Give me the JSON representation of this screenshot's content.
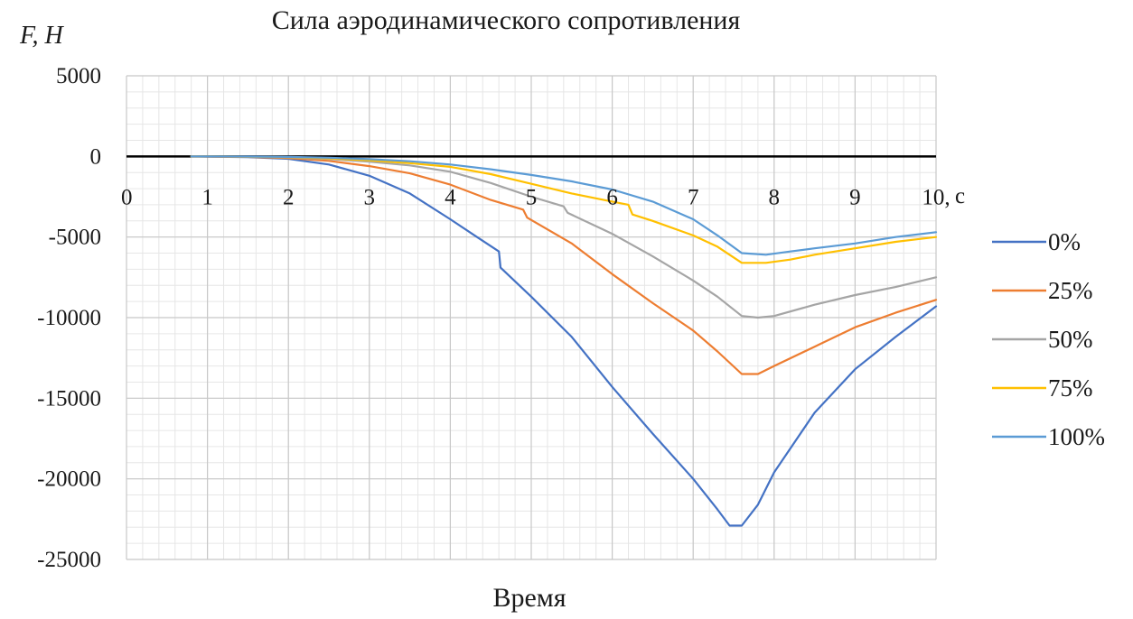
{
  "chart_data": {
    "type": "line",
    "title": "Сила аэродинамического сопротивления",
    "ylabel": "F, H",
    "xlabel": "Время",
    "x_unit": "с",
    "xlim": [
      0,
      10
    ],
    "ylim": [
      -25000,
      5000
    ],
    "x_ticks": [
      0,
      1,
      2,
      3,
      4,
      5,
      6,
      7,
      8,
      9,
      10
    ],
    "x_tick_labels": [
      "0",
      "1",
      "2",
      "3",
      "4",
      "5",
      "6",
      "7",
      "8",
      "9",
      "10,"
    ],
    "y_ticks": [
      5000,
      0,
      -5000,
      -10000,
      -15000,
      -20000,
      -25000
    ],
    "y_tick_labels": [
      "5000",
      "0",
      "-5000",
      "-10000",
      "-15000",
      "-20000",
      "-25000"
    ],
    "grid": true,
    "legend_position": "right",
    "series": [
      {
        "name": "0%",
        "color": "#4472c4",
        "points": [
          [
            0.8,
            0
          ],
          [
            1.5,
            -50
          ],
          [
            2,
            -150
          ],
          [
            2.5,
            -500
          ],
          [
            3,
            -1200
          ],
          [
            3.5,
            -2300
          ],
          [
            4,
            -3900
          ],
          [
            4.3,
            -4900
          ],
          [
            4.6,
            -5900
          ],
          [
            4.62,
            -6900
          ],
          [
            5,
            -8700
          ],
          [
            5.5,
            -11200
          ],
          [
            6,
            -14300
          ],
          [
            6.5,
            -17200
          ],
          [
            7,
            -20000
          ],
          [
            7.3,
            -21900
          ],
          [
            7.45,
            -22900
          ],
          [
            7.6,
            -22900
          ],
          [
            7.8,
            -21600
          ],
          [
            8,
            -19600
          ],
          [
            8.5,
            -15900
          ],
          [
            9,
            -13200
          ],
          [
            9.5,
            -11200
          ],
          [
            10,
            -9300
          ]
        ]
      },
      {
        "name": "25%",
        "color": "#ed7d31",
        "points": [
          [
            0.8,
            0
          ],
          [
            1.5,
            -30
          ],
          [
            2,
            -100
          ],
          [
            2.5,
            -280
          ],
          [
            3,
            -600
          ],
          [
            3.5,
            -1050
          ],
          [
            4,
            -1750
          ],
          [
            4.5,
            -2700
          ],
          [
            4.9,
            -3300
          ],
          [
            4.95,
            -3800
          ],
          [
            5.5,
            -5400
          ],
          [
            6,
            -7300
          ],
          [
            6.5,
            -9100
          ],
          [
            7,
            -10800
          ],
          [
            7.3,
            -12100
          ],
          [
            7.6,
            -13500
          ],
          [
            7.8,
            -13500
          ],
          [
            8,
            -13000
          ],
          [
            8.5,
            -11800
          ],
          [
            9,
            -10600
          ],
          [
            9.5,
            -9700
          ],
          [
            10,
            -8900
          ]
        ]
      },
      {
        "name": "50%",
        "color": "#a5a5a5",
        "points": [
          [
            0.8,
            0
          ],
          [
            1.5,
            -20
          ],
          [
            2,
            -60
          ],
          [
            2.5,
            -160
          ],
          [
            3,
            -330
          ],
          [
            3.5,
            -560
          ],
          [
            4,
            -950
          ],
          [
            4.5,
            -1650
          ],
          [
            5,
            -2500
          ],
          [
            5.4,
            -3100
          ],
          [
            5.45,
            -3500
          ],
          [
            6,
            -4800
          ],
          [
            6.5,
            -6200
          ],
          [
            7,
            -7700
          ],
          [
            7.3,
            -8700
          ],
          [
            7.6,
            -9900
          ],
          [
            7.8,
            -10000
          ],
          [
            8,
            -9900
          ],
          [
            8.5,
            -9200
          ],
          [
            9,
            -8600
          ],
          [
            9.5,
            -8100
          ],
          [
            10,
            -7500
          ]
        ]
      },
      {
        "name": "75%",
        "color": "#ffc000",
        "points": [
          [
            0.8,
            0
          ],
          [
            1.5,
            -15
          ],
          [
            2,
            -45
          ],
          [
            2.5,
            -120
          ],
          [
            3,
            -250
          ],
          [
            3.5,
            -420
          ],
          [
            4,
            -650
          ],
          [
            4.5,
            -1100
          ],
          [
            5,
            -1700
          ],
          [
            5.5,
            -2300
          ],
          [
            6,
            -2800
          ],
          [
            6.2,
            -3000
          ],
          [
            6.25,
            -3600
          ],
          [
            6.5,
            -4000
          ],
          [
            7,
            -4900
          ],
          [
            7.3,
            -5600
          ],
          [
            7.6,
            -6600
          ],
          [
            7.9,
            -6600
          ],
          [
            8.2,
            -6400
          ],
          [
            8.5,
            -6100
          ],
          [
            9,
            -5700
          ],
          [
            9.5,
            -5300
          ],
          [
            10,
            -5000
          ]
        ]
      },
      {
        "name": "100%",
        "color": "#5b9bd5",
        "points": [
          [
            0.8,
            0
          ],
          [
            1.5,
            -10
          ],
          [
            2,
            -30
          ],
          [
            2.5,
            -80
          ],
          [
            3,
            -170
          ],
          [
            3.5,
            -300
          ],
          [
            4,
            -500
          ],
          [
            4.5,
            -800
          ],
          [
            5,
            -1150
          ],
          [
            5.5,
            -1550
          ],
          [
            6,
            -2050
          ],
          [
            6.5,
            -2800
          ],
          [
            7,
            -3900
          ],
          [
            7.3,
            -4900
          ],
          [
            7.6,
            -6000
          ],
          [
            7.9,
            -6100
          ],
          [
            8.2,
            -5900
          ],
          [
            8.5,
            -5700
          ],
          [
            9,
            -5400
          ],
          [
            9.5,
            -5000
          ],
          [
            10,
            -4700
          ]
        ]
      }
    ]
  }
}
